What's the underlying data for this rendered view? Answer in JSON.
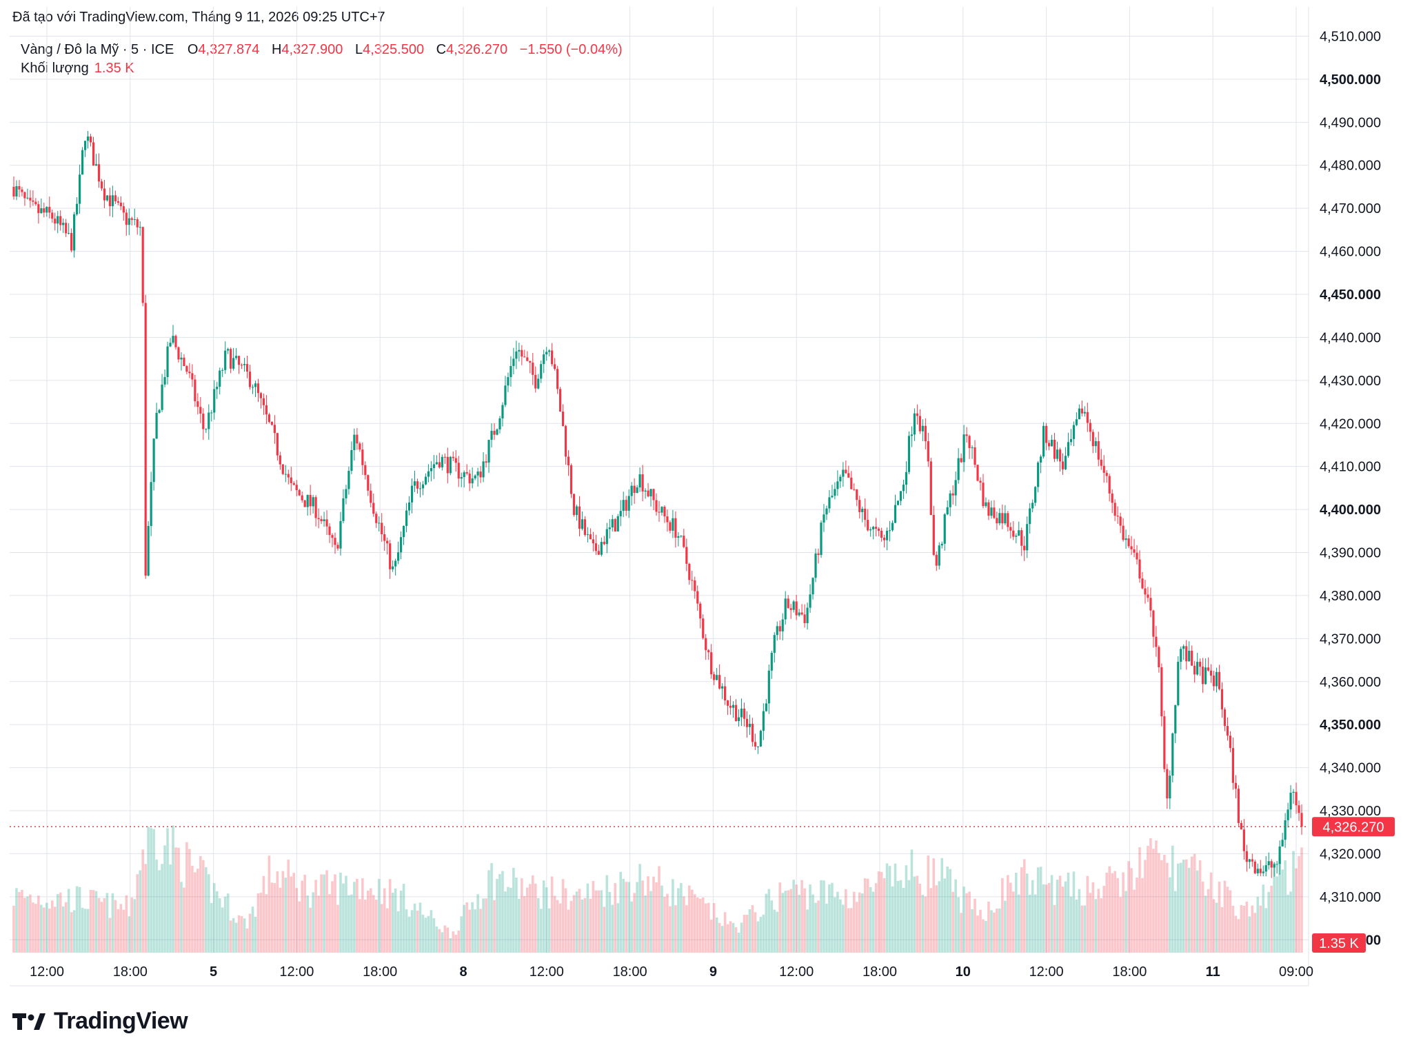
{
  "header": {
    "created_text": "Đã tạo với TradingView.com, Tháng 9 11, 2026 09:25 UTC+7"
  },
  "legend": {
    "symbol": "Vàng / Đô la Mỹ · 5 · ICE",
    "open_label": "O",
    "open_value": "4,327.874",
    "high_label": "H",
    "high_value": "4,327.900",
    "low_label": "L",
    "low_value": "4,325.500",
    "close_label": "C",
    "close_value": "4,326.270",
    "change": "−1.550 (−0.04%)",
    "volume_label": "Khối lượng",
    "volume_value": "1.35 K"
  },
  "colors": {
    "up": "#089981",
    "down": "#f23645",
    "grid": "#e0e3eb",
    "text": "#131722"
  },
  "brand": {
    "name": "TradingView"
  },
  "chart_data": {
    "type": "candlestick",
    "y_axis": {
      "ylim": [
        4297,
        4512
      ],
      "ticks": [
        "4,510.000",
        "4,500.000",
        "4,490.000",
        "4,480.000",
        "4,470.000",
        "4,460.000",
        "4,450.000",
        "4,440.000",
        "4,430.000",
        "4,420.000",
        "4,410.000",
        "4,400.000",
        "4,390.000",
        "4,380.000",
        "4,370.000",
        "4,360.000",
        "4,350.000",
        "4,340.000",
        "4,330.000",
        "4,320.000",
        "4,310.000",
        "4,300.000"
      ],
      "bold_ticks": [
        "4,500.000",
        "4,450.000",
        "4,400.000",
        "4,350.000",
        "4,300.000"
      ]
    },
    "last_price": {
      "value": 4326.27,
      "label": "4,326.270"
    },
    "last_volume": {
      "label": "1.35 K"
    },
    "x_axis": {
      "ticks": [
        {
          "label": "12:00",
          "bold": false
        },
        {
          "label": "18:00",
          "bold": false
        },
        {
          "label": "5",
          "bold": true
        },
        {
          "label": "12:00",
          "bold": false
        },
        {
          "label": "18:00",
          "bold": false
        },
        {
          "label": "8",
          "bold": true
        },
        {
          "label": "12:00",
          "bold": false
        },
        {
          "label": "18:00",
          "bold": false
        },
        {
          "label": "9",
          "bold": true
        },
        {
          "label": "12:00",
          "bold": false
        },
        {
          "label": "18:00",
          "bold": false
        },
        {
          "label": "10",
          "bold": true
        },
        {
          "label": "12:00",
          "bold": false
        },
        {
          "label": "18:00",
          "bold": false
        },
        {
          "label": "11",
          "bold": true
        },
        {
          "label": "09:00",
          "bold": false
        }
      ]
    },
    "price_path": [
      {
        "t": 0.0,
        "p": 4475
      },
      {
        "t": 0.012,
        "p": 4470
      },
      {
        "t": 0.03,
        "p": 4468
      },
      {
        "t": 0.045,
        "p": 4462
      },
      {
        "t": 0.052,
        "p": 4478
      },
      {
        "t": 0.055,
        "p": 4488
      },
      {
        "t": 0.07,
        "p": 4474
      },
      {
        "t": 0.085,
        "p": 4468
      },
      {
        "t": 0.095,
        "p": 4466
      },
      {
        "t": 0.1,
        "p": 4465
      },
      {
        "t": 0.101,
        "p": 4380
      },
      {
        "t": 0.11,
        "p": 4420
      },
      {
        "t": 0.122,
        "p": 4440
      },
      {
        "t": 0.135,
        "p": 4432
      },
      {
        "t": 0.148,
        "p": 4418
      },
      {
        "t": 0.165,
        "p": 4436
      },
      {
        "t": 0.185,
        "p": 4430
      },
      {
        "t": 0.2,
        "p": 4418
      },
      {
        "t": 0.215,
        "p": 4405
      },
      {
        "t": 0.235,
        "p": 4400
      },
      {
        "t": 0.25,
        "p": 4390
      },
      {
        "t": 0.265,
        "p": 4418
      },
      {
        "t": 0.28,
        "p": 4400
      },
      {
        "t": 0.295,
        "p": 4385
      },
      {
        "t": 0.31,
        "p": 4405
      },
      {
        "t": 0.33,
        "p": 4412
      },
      {
        "t": 0.35,
        "p": 4408
      },
      {
        "t": 0.36,
        "p": 4407
      },
      {
        "t": 0.375,
        "p": 4420
      },
      {
        "t": 0.39,
        "p": 4438
      },
      {
        "t": 0.405,
        "p": 4430
      },
      {
        "t": 0.415,
        "p": 4440
      },
      {
        "t": 0.425,
        "p": 4422
      },
      {
        "t": 0.435,
        "p": 4400
      },
      {
        "t": 0.45,
        "p": 4390
      },
      {
        "t": 0.47,
        "p": 4398
      },
      {
        "t": 0.485,
        "p": 4408
      },
      {
        "t": 0.5,
        "p": 4400
      },
      {
        "t": 0.515,
        "p": 4395
      },
      {
        "t": 0.525,
        "p": 4385
      },
      {
        "t": 0.54,
        "p": 4365
      },
      {
        "t": 0.555,
        "p": 4355
      },
      {
        "t": 0.57,
        "p": 4350
      },
      {
        "t": 0.578,
        "p": 4345
      },
      {
        "t": 0.59,
        "p": 4368
      },
      {
        "t": 0.6,
        "p": 4378
      },
      {
        "t": 0.615,
        "p": 4375
      },
      {
        "t": 0.63,
        "p": 4400
      },
      {
        "t": 0.645,
        "p": 4408
      },
      {
        "t": 0.66,
        "p": 4398
      },
      {
        "t": 0.675,
        "p": 4392
      },
      {
        "t": 0.69,
        "p": 4405
      },
      {
        "t": 0.7,
        "p": 4425
      },
      {
        "t": 0.71,
        "p": 4412
      },
      {
        "t": 0.715,
        "p": 4385
      },
      {
        "t": 0.725,
        "p": 4400
      },
      {
        "t": 0.74,
        "p": 4418
      },
      {
        "t": 0.755,
        "p": 4400
      },
      {
        "t": 0.77,
        "p": 4398
      },
      {
        "t": 0.785,
        "p": 4392
      },
      {
        "t": 0.8,
        "p": 4418
      },
      {
        "t": 0.815,
        "p": 4410
      },
      {
        "t": 0.83,
        "p": 4424
      },
      {
        "t": 0.845,
        "p": 4410
      },
      {
        "t": 0.86,
        "p": 4395
      },
      {
        "t": 0.875,
        "p": 4385
      },
      {
        "t": 0.888,
        "p": 4368
      },
      {
        "t": 0.895,
        "p": 4330
      },
      {
        "t": 0.905,
        "p": 4368
      },
      {
        "t": 0.92,
        "p": 4362
      },
      {
        "t": 0.935,
        "p": 4360
      },
      {
        "t": 0.945,
        "p": 4342
      },
      {
        "t": 0.955,
        "p": 4320
      },
      {
        "t": 0.97,
        "p": 4316
      },
      {
        "t": 0.982,
        "p": 4318
      },
      {
        "t": 0.992,
        "p": 4336
      },
      {
        "t": 1.0,
        "p": 4326
      }
    ],
    "volume_envelope_k": [
      {
        "t": 0.0,
        "v": 0.9
      },
      {
        "t": 0.05,
        "v": 0.85
      },
      {
        "t": 0.09,
        "v": 0.7
      },
      {
        "t": 0.1,
        "v": 1.6
      },
      {
        "t": 0.11,
        "v": 1.9
      },
      {
        "t": 0.13,
        "v": 1.5
      },
      {
        "t": 0.16,
        "v": 0.9
      },
      {
        "t": 0.18,
        "v": 0.45
      },
      {
        "t": 0.2,
        "v": 1.3
      },
      {
        "t": 0.23,
        "v": 1.0
      },
      {
        "t": 0.27,
        "v": 1.1
      },
      {
        "t": 0.3,
        "v": 0.9
      },
      {
        "t": 0.34,
        "v": 0.3
      },
      {
        "t": 0.37,
        "v": 1.2
      },
      {
        "t": 0.4,
        "v": 1.0
      },
      {
        "t": 0.44,
        "v": 0.9
      },
      {
        "t": 0.49,
        "v": 1.2
      },
      {
        "t": 0.53,
        "v": 0.8
      },
      {
        "t": 0.56,
        "v": 0.4
      },
      {
        "t": 0.6,
        "v": 1.0
      },
      {
        "t": 0.65,
        "v": 0.9
      },
      {
        "t": 0.7,
        "v": 1.3
      },
      {
        "t": 0.72,
        "v": 1.2
      },
      {
        "t": 0.75,
        "v": 0.6
      },
      {
        "t": 0.78,
        "v": 1.2
      },
      {
        "t": 0.82,
        "v": 1.0
      },
      {
        "t": 0.86,
        "v": 1.1
      },
      {
        "t": 0.88,
        "v": 1.5
      },
      {
        "t": 0.9,
        "v": 1.4
      },
      {
        "t": 0.93,
        "v": 1.1
      },
      {
        "t": 0.96,
        "v": 0.6
      },
      {
        "t": 0.98,
        "v": 1.2
      },
      {
        "t": 1.0,
        "v": 1.35
      }
    ]
  }
}
